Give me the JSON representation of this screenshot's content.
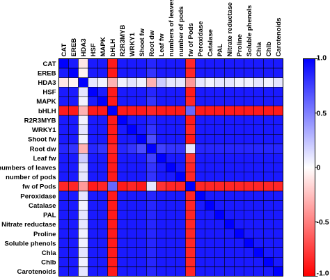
{
  "chart_data": {
    "type": "heatmap",
    "title": "",
    "variables": [
      "CAT",
      "EREB",
      "HDA3",
      "HSF",
      "MAPK",
      "bHLH",
      "R2R3MYB",
      "WRKY1",
      "Shoot fw",
      "Root dw",
      "Leaf fw",
      "numbers of leaves",
      "number of pods",
      "fw of Pods",
      "Peroxidase",
      "Catalase",
      "PAL",
      "Nitrate reductase",
      "Proline",
      "Soluble phenols",
      "Chla",
      "Chlb",
      "Carotenoids"
    ],
    "x_labels": [
      "CAT",
      "EREB",
      "HDA3",
      "HSF",
      "MAPK",
      "bHLH",
      "R2R3MYB",
      "WRKY1",
      "Shoot fw",
      "Root dw",
      "Leaf fw",
      "numbers of leaves",
      "number of pods",
      "fw of Pods",
      "Peroxidase",
      "Catalase",
      "PAL",
      "Nitrate reductase",
      "Proline",
      "Soluble phenols",
      "Chla",
      "Chlb",
      "Carotenoids"
    ],
    "y_labels": [
      "CAT",
      "EREB",
      "HDA3",
      "HSF",
      "MAPK",
      "bHLH",
      "R2R3MYB",
      "WRKY1",
      "Shoot fw",
      "Root dw",
      "Leaf fw",
      "numbers of leaves",
      "number of pods",
      "fw of Pods",
      "Peroxidase",
      "Catalase",
      "PAL",
      "Nitrate reductase",
      "Proline",
      "Soluble phenols",
      "Chla",
      "Chlb",
      "Carotenoids"
    ],
    "values": [
      [
        1.0,
        0.9,
        -0.1,
        0.9,
        0.9,
        -0.9,
        0.9,
        0.9,
        0.9,
        0.85,
        0.9,
        0.9,
        0.9,
        -0.85,
        0.9,
        0.9,
        0.9,
        0.9,
        0.9,
        0.9,
        0.9,
        0.9,
        0.9
      ],
      [
        0.9,
        1.0,
        -0.05,
        0.9,
        0.9,
        -0.9,
        0.9,
        0.9,
        0.9,
        0.8,
        0.9,
        0.9,
        0.9,
        -0.85,
        0.9,
        0.9,
        0.9,
        0.9,
        0.9,
        0.9,
        0.9,
        0.9,
        0.9
      ],
      [
        -0.1,
        -0.05,
        1.0,
        0.1,
        0.05,
        -0.3,
        0.05,
        0.1,
        0.05,
        -0.3,
        0.2,
        0.1,
        0.1,
        -0.4,
        0.1,
        0.05,
        0.1,
        0.1,
        0.05,
        0.05,
        0.1,
        0.05,
        0.1
      ],
      [
        0.9,
        0.9,
        0.1,
        1.0,
        0.9,
        -0.9,
        0.9,
        0.9,
        0.9,
        0.85,
        0.9,
        0.9,
        0.9,
        -0.9,
        0.9,
        0.9,
        0.9,
        0.9,
        0.9,
        0.9,
        0.9,
        0.9,
        0.9
      ],
      [
        0.9,
        0.9,
        0.05,
        0.9,
        1.0,
        -0.9,
        0.9,
        0.9,
        0.9,
        0.8,
        0.9,
        0.9,
        0.9,
        -0.85,
        0.9,
        0.9,
        0.9,
        0.9,
        0.9,
        0.9,
        0.9,
        0.9,
        0.9
      ],
      [
        -0.9,
        -0.9,
        -0.3,
        -0.9,
        -0.9,
        1.0,
        -0.9,
        -0.9,
        -0.9,
        -0.85,
        -0.9,
        -0.9,
        -0.9,
        0.6,
        -0.9,
        -0.9,
        -0.9,
        -0.9,
        -0.9,
        -0.9,
        -0.9,
        -0.9,
        -0.9
      ],
      [
        0.9,
        0.9,
        0.05,
        0.9,
        0.9,
        -0.9,
        1.0,
        0.9,
        0.9,
        0.85,
        0.9,
        0.9,
        0.9,
        -0.9,
        0.9,
        0.9,
        0.9,
        0.9,
        0.9,
        0.9,
        0.9,
        0.9,
        0.9
      ],
      [
        0.9,
        0.9,
        0.1,
        0.9,
        0.9,
        -0.9,
        0.9,
        1.0,
        0.9,
        0.8,
        0.9,
        0.9,
        0.9,
        -0.85,
        0.9,
        0.9,
        0.9,
        0.9,
        0.9,
        0.9,
        0.9,
        0.9,
        0.9
      ],
      [
        0.9,
        0.9,
        0.05,
        0.9,
        0.9,
        -0.9,
        0.9,
        0.9,
        1.0,
        0.7,
        0.9,
        0.9,
        0.9,
        -0.9,
        0.9,
        0.9,
        0.9,
        0.9,
        0.9,
        0.9,
        0.9,
        0.9,
        0.9
      ],
      [
        0.85,
        0.8,
        -0.3,
        0.85,
        0.8,
        -0.85,
        0.85,
        0.8,
        0.7,
        1.0,
        0.75,
        0.8,
        0.8,
        0.1,
        0.85,
        0.85,
        0.85,
        0.85,
        0.85,
        0.85,
        0.85,
        0.85,
        0.85
      ],
      [
        0.9,
        0.9,
        0.2,
        0.9,
        0.9,
        -0.9,
        0.9,
        0.9,
        0.9,
        0.75,
        1.0,
        0.9,
        0.9,
        -0.8,
        0.9,
        0.9,
        0.9,
        0.9,
        0.9,
        0.9,
        0.9,
        0.9,
        0.9
      ],
      [
        0.9,
        0.9,
        0.1,
        0.9,
        0.9,
        -0.9,
        0.9,
        0.9,
        0.9,
        0.8,
        0.9,
        1.0,
        0.9,
        -0.85,
        0.9,
        0.9,
        0.9,
        0.9,
        0.9,
        0.9,
        0.9,
        0.9,
        0.9
      ],
      [
        0.9,
        0.9,
        0.1,
        0.9,
        0.9,
        -0.9,
        0.9,
        0.9,
        0.9,
        0.8,
        0.9,
        0.9,
        1.0,
        -0.85,
        0.9,
        0.9,
        0.9,
        0.9,
        0.9,
        0.9,
        0.9,
        0.9,
        0.9
      ],
      [
        -0.85,
        -0.85,
        -0.4,
        -0.9,
        -0.85,
        0.6,
        -0.9,
        -0.85,
        -0.9,
        0.1,
        -0.8,
        -0.85,
        -0.85,
        1.0,
        -0.85,
        -0.85,
        -0.85,
        -0.85,
        -0.85,
        -0.85,
        -0.85,
        -0.85,
        -0.85
      ],
      [
        0.9,
        0.9,
        0.1,
        0.9,
        0.9,
        -0.9,
        0.9,
        0.9,
        0.9,
        0.85,
        0.9,
        0.9,
        0.9,
        -0.85,
        1.0,
        0.9,
        0.9,
        0.9,
        0.9,
        0.9,
        0.9,
        0.9,
        0.9
      ],
      [
        0.9,
        0.9,
        0.05,
        0.9,
        0.9,
        -0.9,
        0.9,
        0.9,
        0.9,
        0.85,
        0.9,
        0.9,
        0.9,
        -0.85,
        0.9,
        1.0,
        0.9,
        0.9,
        0.9,
        0.9,
        0.9,
        0.9,
        0.9
      ],
      [
        0.9,
        0.9,
        0.1,
        0.9,
        0.9,
        -0.9,
        0.9,
        0.9,
        0.9,
        0.85,
        0.9,
        0.9,
        0.9,
        -0.85,
        0.9,
        0.9,
        1.0,
        0.9,
        0.9,
        0.9,
        0.9,
        0.9,
        0.9
      ],
      [
        0.9,
        0.9,
        0.1,
        0.9,
        0.9,
        -0.9,
        0.9,
        0.9,
        0.9,
        0.85,
        0.9,
        0.9,
        0.9,
        -0.85,
        0.9,
        0.9,
        0.9,
        1.0,
        0.9,
        0.9,
        0.9,
        0.9,
        0.9
      ],
      [
        0.9,
        0.9,
        0.05,
        0.9,
        0.9,
        -0.9,
        0.9,
        0.9,
        0.9,
        0.85,
        0.9,
        0.9,
        0.9,
        -0.85,
        0.9,
        0.9,
        0.9,
        0.9,
        1.0,
        0.9,
        0.9,
        0.9,
        0.9
      ],
      [
        0.9,
        0.9,
        0.05,
        0.9,
        0.9,
        -0.9,
        0.9,
        0.9,
        0.9,
        0.85,
        0.9,
        0.9,
        0.9,
        -0.85,
        0.9,
        0.9,
        0.9,
        0.9,
        0.9,
        1.0,
        0.9,
        0.9,
        0.9
      ],
      [
        0.9,
        0.9,
        0.1,
        0.9,
        0.9,
        -0.9,
        0.9,
        0.9,
        0.9,
        0.85,
        0.9,
        0.9,
        0.9,
        -0.85,
        0.9,
        0.9,
        0.9,
        0.9,
        0.9,
        0.9,
        1.0,
        0.9,
        0.9
      ],
      [
        0.9,
        0.9,
        0.05,
        0.9,
        0.9,
        -0.9,
        0.9,
        0.9,
        0.9,
        0.85,
        0.9,
        0.9,
        0.9,
        -0.85,
        0.9,
        0.9,
        0.9,
        0.9,
        0.9,
        0.9,
        0.9,
        1.0,
        0.9
      ],
      [
        0.9,
        0.9,
        0.1,
        0.9,
        0.9,
        -0.9,
        0.9,
        0.9,
        0.9,
        0.85,
        0.9,
        0.9,
        0.9,
        -0.85,
        0.9,
        0.9,
        0.9,
        0.9,
        0.9,
        0.9,
        0.9,
        0.9,
        1.0
      ]
    ],
    "colorbar": {
      "ticks": [
        1.0,
        0.5,
        0,
        -0.5,
        -1.0
      ],
      "tick_labels": [
        "1.0",
        "0.5",
        "0",
        "-0.5",
        "-1.0"
      ],
      "range": [
        -1.0,
        1.0
      ],
      "colors": {
        "high": "#0000ff",
        "mid": "#ffffff",
        "low": "#ff0000"
      }
    },
    "x_label_position": "top",
    "y_label_position": "left",
    "grid": true,
    "legend_position": "right"
  }
}
